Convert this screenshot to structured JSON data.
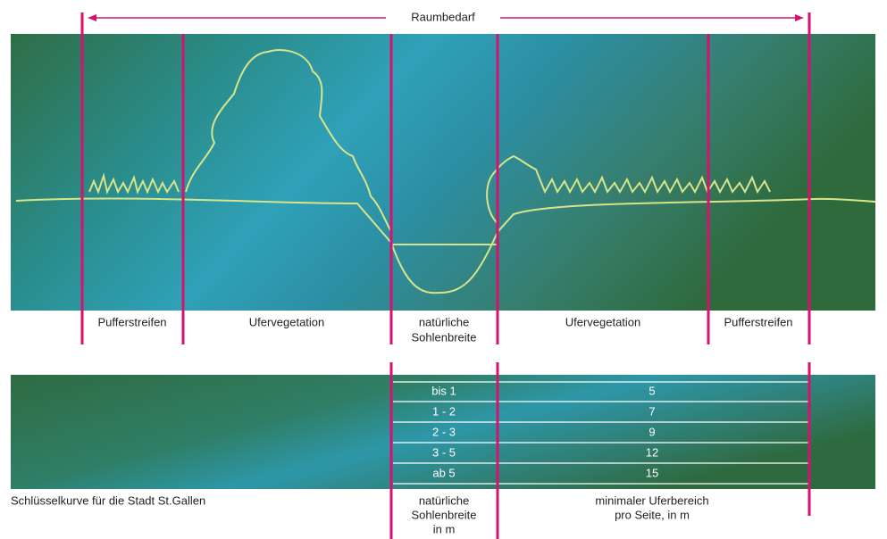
{
  "header": {
    "title": "Raumbedarf"
  },
  "zones": [
    {
      "label": [
        "Pufferstreifen"
      ]
    },
    {
      "label": [
        "Ufervegetation"
      ]
    },
    {
      "label": [
        "natürliche",
        "Sohlenbreite"
      ]
    },
    {
      "label": [
        "Ufervegetation"
      ]
    },
    {
      "label": [
        "Pufferstreifen"
      ]
    }
  ],
  "table": {
    "caption": "Schlüsselkurve für die Stadt St.Gallen",
    "columns": [
      [
        "natürliche",
        "Sohlenbreite",
        "in m"
      ],
      [
        "minimaler Uferbereich",
        "pro Seite, in m"
      ]
    ],
    "rows": [
      [
        "bis 1",
        5
      ],
      [
        "1 - 2",
        7
      ],
      [
        "2 - 3",
        9
      ],
      [
        "3 - 5",
        12
      ],
      [
        "ab 5",
        15
      ]
    ]
  }
}
